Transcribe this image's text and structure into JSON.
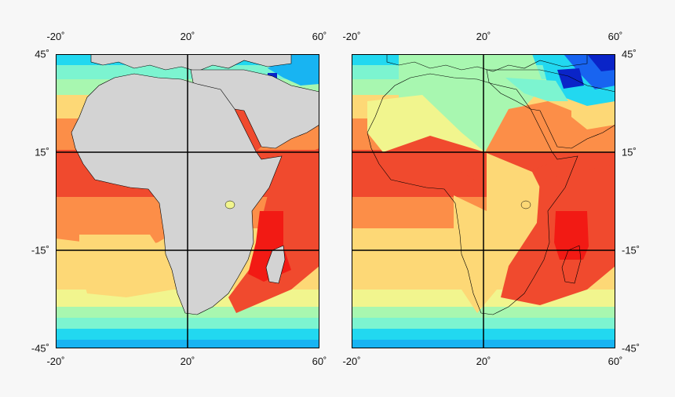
{
  "maps": [
    {
      "id": "left",
      "land_fill": "#d3d3d3",
      "x_ticks": [
        "-20˚",
        "20˚",
        "60˚"
      ],
      "y_ticks": [
        "45˚",
        "15˚",
        "-15˚",
        "-45˚"
      ],
      "y_label_side": "left"
    },
    {
      "id": "right",
      "land_fill": "none",
      "x_ticks": [
        "-20˚",
        "20˚",
        "60˚"
      ],
      "y_ticks": [
        "45˚",
        "15˚",
        "-15˚",
        "-45˚"
      ],
      "y_label_side": "right"
    }
  ],
  "extent": {
    "lon": [
      -20,
      60
    ],
    "lat": [
      -45,
      45
    ]
  },
  "colors": {
    "red": "#f04a2e",
    "deep_red": "#f21a14",
    "orange": "#fc8e48",
    "yellow": "#fdd876",
    "pale_yellow": "#f1f58e",
    "mint": "#a8f7b0",
    "aqua": "#7cf4d0",
    "cyan": "#22d8f0",
    "sky": "#18b4f2",
    "blue": "#1864f0",
    "navy": "#0a24c8",
    "land": "#d3d3d3",
    "grid": "#000000"
  }
}
